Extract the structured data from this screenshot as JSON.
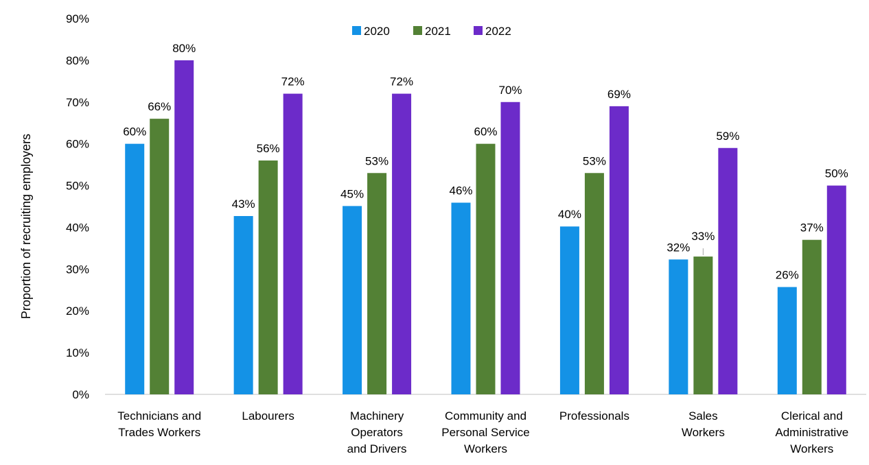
{
  "chart_data": {
    "type": "bar",
    "title": "",
    "xlabel": "",
    "ylabel": "Proportion of recruiting employers",
    "ylim": [
      0,
      90
    ],
    "yticks": [
      "0%",
      "10%",
      "20%",
      "30%",
      "40%",
      "50%",
      "60%",
      "70%",
      "80%",
      "90%"
    ],
    "grid": false,
    "legend_position": "top",
    "categories": [
      [
        "Technicians and",
        "Trades Workers"
      ],
      [
        "Labourers"
      ],
      [
        "Machinery",
        "Operators",
        "and Drivers"
      ],
      [
        "Community and",
        "Personal Service",
        "Workers"
      ],
      [
        "Professionals"
      ],
      [
        "Sales",
        "Workers"
      ],
      [
        "Clerical and",
        "Administrative",
        "Workers"
      ]
    ],
    "series": [
      {
        "name": "2020",
        "color": "#1492E6",
        "values": [
          60,
          42.7,
          45.1,
          45.9,
          40.2,
          32.3,
          25.7
        ],
        "labels": [
          "60%",
          "43%",
          "45%",
          "46%",
          "40%",
          "32%",
          "26%"
        ]
      },
      {
        "name": "2021",
        "color": "#538135",
        "values": [
          66,
          56,
          53,
          60,
          53,
          33,
          37
        ],
        "labels": [
          "66%",
          "56%",
          "53%",
          "60%",
          "53%",
          "33%",
          "37%"
        ]
      },
      {
        "name": "2022",
        "color": "#6C2BC9",
        "values": [
          80,
          72,
          72,
          70,
          69,
          59,
          50
        ],
        "labels": [
          "80%",
          "72%",
          "72%",
          "70%",
          "69%",
          "59%",
          "50%"
        ]
      }
    ]
  }
}
